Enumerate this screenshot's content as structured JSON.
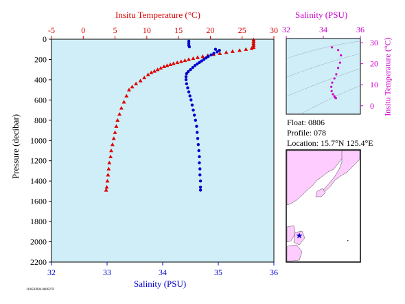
{
  "chart_data": [
    {
      "type": "scatter",
      "panel": "profile",
      "top_axis_label": "Insitu Temperature (°C)",
      "top_axis_ticks": [
        "-5",
        "0",
        "5",
        "10",
        "15",
        "20",
        "25",
        "30"
      ],
      "top_axis_range": [
        -5,
        30
      ],
      "bottom_axis_label": "Salinity (PSU)",
      "bottom_axis_ticks": [
        "32",
        "33",
        "34",
        "35",
        "36"
      ],
      "bottom_axis_range": [
        32,
        36
      ],
      "ylabel": "Pressure (decibar)",
      "y_ticks": [
        "0",
        "200",
        "400",
        "600",
        "800",
        "1000",
        "1200",
        "1400",
        "1600",
        "1800",
        "2000",
        "2200"
      ],
      "ylim": [
        2200,
        0
      ],
      "grid": false,
      "series": [
        {
          "axis": "temperature",
          "marker": "triangle",
          "color": "#dd0000",
          "points": [
            [
              26.8,
              5
            ],
            [
              26.8,
              20
            ],
            [
              26.8,
              40
            ],
            [
              26.8,
              60
            ],
            [
              26.8,
              80
            ],
            [
              26.5,
              90
            ],
            [
              25.6,
              100
            ],
            [
              24.6,
              110
            ],
            [
              23.5,
              120
            ],
            [
              22.5,
              130
            ],
            [
              21.5,
              140
            ],
            [
              20.5,
              150
            ],
            [
              19.6,
              160
            ],
            [
              18.8,
              170
            ],
            [
              18.0,
              180
            ],
            [
              17.3,
              190
            ],
            [
              16.6,
              200
            ],
            [
              16.0,
              210
            ],
            [
              15.4,
              220
            ],
            [
              14.8,
              230
            ],
            [
              14.2,
              240
            ],
            [
              13.7,
              250
            ],
            [
              13.2,
              260
            ],
            [
              12.7,
              270
            ],
            [
              12.2,
              285
            ],
            [
              11.7,
              300
            ],
            [
              11.2,
              315
            ],
            [
              10.7,
              330
            ],
            [
              10.2,
              350
            ],
            [
              9.6,
              380
            ],
            [
              9.0,
              410
            ],
            [
              8.3,
              440
            ],
            [
              7.7,
              470
            ],
            [
              7.2,
              500
            ],
            [
              6.8,
              560
            ],
            [
              6.4,
              620
            ],
            [
              6.0,
              680
            ],
            [
              5.7,
              740
            ],
            [
              5.4,
              800
            ],
            [
              5.2,
              860
            ],
            [
              5.0,
              920
            ],
            [
              4.8,
              980
            ],
            [
              4.6,
              1040
            ],
            [
              4.4,
              1100
            ],
            [
              4.3,
              1160
            ],
            [
              4.1,
              1220
            ],
            [
              4.0,
              1280
            ],
            [
              3.9,
              1340
            ],
            [
              3.8,
              1400
            ],
            [
              3.7,
              1460
            ],
            [
              3.6,
              1490
            ]
          ]
        },
        {
          "axis": "salinity",
          "marker": "circle",
          "color": "#0000cc",
          "points": [
            [
              34.47,
              20
            ],
            [
              34.47,
              40
            ],
            [
              34.47,
              60
            ],
            [
              34.48,
              75
            ],
            [
              34.95,
              100
            ],
            [
              35.02,
              110
            ],
            [
              34.98,
              125
            ],
            [
              34.92,
              140
            ],
            [
              34.87,
              155
            ],
            [
              34.82,
              170
            ],
            [
              34.78,
              185
            ],
            [
              34.74,
              200
            ],
            [
              34.7,
              215
            ],
            [
              34.66,
              230
            ],
            [
              34.62,
              245
            ],
            [
              34.58,
              260
            ],
            [
              34.54,
              280
            ],
            [
              34.5,
              300
            ],
            [
              34.46,
              320
            ],
            [
              34.43,
              340
            ],
            [
              34.42,
              370
            ],
            [
              34.42,
              400
            ],
            [
              34.43,
              440
            ],
            [
              34.45,
              480
            ],
            [
              34.47,
              520
            ],
            [
              34.49,
              560
            ],
            [
              34.51,
              600
            ],
            [
              34.53,
              650
            ],
            [
              34.55,
              700
            ],
            [
              34.57,
              750
            ],
            [
              34.59,
              800
            ],
            [
              34.61,
              860
            ],
            [
              34.62,
              920
            ],
            [
              34.63,
              980
            ],
            [
              34.64,
              1040
            ],
            [
              34.65,
              1100
            ],
            [
              34.66,
              1160
            ],
            [
              34.66,
              1220
            ],
            [
              34.67,
              1280
            ],
            [
              34.67,
              1340
            ],
            [
              34.68,
              1400
            ],
            [
              34.68,
              1460
            ],
            [
              34.68,
              1490
            ]
          ]
        }
      ]
    },
    {
      "type": "scatter",
      "panel": "ts_diagram",
      "top_axis_label": "Salinity (PSU)",
      "top_axis_ticks": [
        "32",
        "34",
        "36"
      ],
      "xlim": [
        32,
        36
      ],
      "right_axis_label": "Insitu Temperature (°C)",
      "right_axis_ticks": [
        "0",
        "10",
        "20",
        "30"
      ],
      "ylim": [
        -4,
        32
      ],
      "series": [
        {
          "color": "#cc00cc",
          "marker": "circle",
          "points": [
            [
              34.47,
              27.8
            ],
            [
              34.8,
              26.5
            ],
            [
              34.95,
              24.0
            ],
            [
              34.9,
              20.5
            ],
            [
              34.8,
              18.0
            ],
            [
              34.7,
              15.0
            ],
            [
              34.6,
              13.0
            ],
            [
              34.48,
              11.0
            ],
            [
              34.43,
              9.0
            ],
            [
              34.45,
              7.0
            ],
            [
              34.52,
              5.5
            ],
            [
              34.6,
              4.5
            ],
            [
              34.65,
              3.8
            ],
            [
              34.68,
              3.6
            ]
          ]
        }
      ]
    }
  ],
  "float_info": {
    "float": "Float:  0806",
    "profile": "Profile:  078",
    "location": "Location:  15.7°N  125.4°E"
  },
  "map": {
    "marker_color": "#0000cc",
    "land_color": "#ffccff",
    "sea_color": "#ffffff"
  },
  "colors": {
    "plot_bg": "#cfeef7",
    "temperature": "#dd0000",
    "salinity": "#0000cc",
    "ts": "#cc00cc"
  },
  "footer_code": "110630004.0800276"
}
